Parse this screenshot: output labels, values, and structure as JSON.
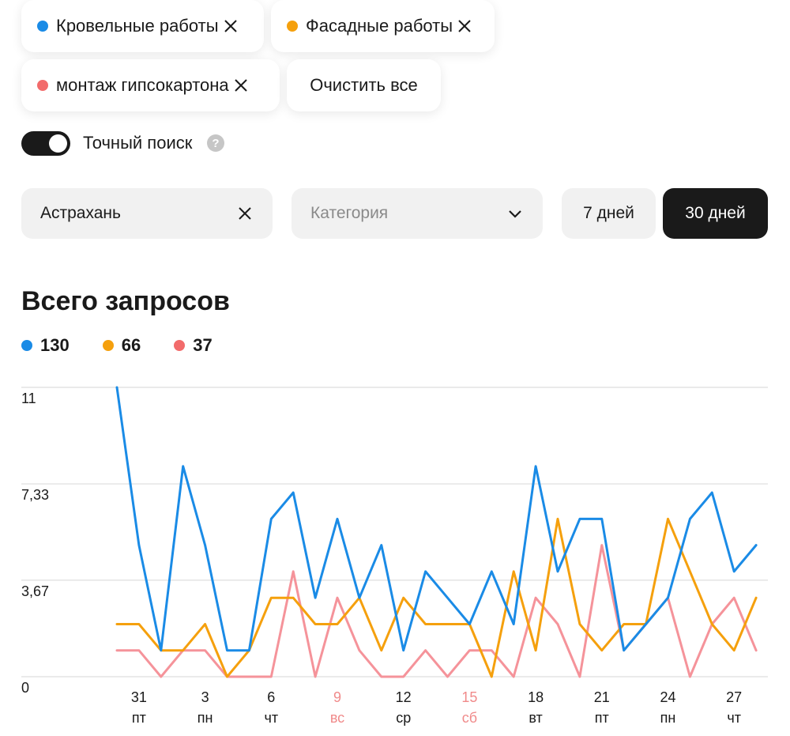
{
  "filters": {
    "chips": [
      {
        "label": "Кровельные работы",
        "color": "#1a8be6"
      },
      {
        "label": "Фасадные работы",
        "color": "#f5a00d"
      },
      {
        "label": "монтаж гипсокартона",
        "color": "#f26b6b"
      }
    ],
    "clear_all": "Очистить все"
  },
  "exact_search": {
    "label": "Точный поиск",
    "enabled": true,
    "help": "?"
  },
  "city": {
    "value": "Астрахань"
  },
  "category": {
    "placeholder": "Категория"
  },
  "period": {
    "days7": "7 дней",
    "days30": "30 дней",
    "selected": "30 дней"
  },
  "summary": {
    "title": "Всего запросов",
    "totals": [
      {
        "value": "130",
        "color": "#1a8be6"
      },
      {
        "value": "66",
        "color": "#f5a00d"
      },
      {
        "value": "37",
        "color": "#f26b6b"
      }
    ]
  },
  "chart_data": {
    "type": "line",
    "ylim": [
      0,
      11
    ],
    "y_ticks": [
      "11",
      "7,33",
      "3,67",
      "0"
    ],
    "y_tick_values": [
      11,
      7.33,
      3.67,
      0
    ],
    "x": [
      30,
      31,
      1,
      2,
      3,
      4,
      5,
      6,
      7,
      8,
      9,
      10,
      11,
      12,
      13,
      14,
      15,
      16,
      17,
      18,
      19,
      20,
      21,
      22,
      23,
      24,
      25,
      26,
      27,
      28
    ],
    "x_ticks": [
      {
        "day": "31",
        "weekday": "пт",
        "index": 1,
        "weekend": false
      },
      {
        "day": "3",
        "weekday": "пн",
        "index": 4,
        "weekend": false
      },
      {
        "day": "6",
        "weekday": "чт",
        "index": 7,
        "weekend": false
      },
      {
        "day": "9",
        "weekday": "вс",
        "index": 10,
        "weekend": true
      },
      {
        "day": "12",
        "weekday": "ср",
        "index": 13,
        "weekend": false
      },
      {
        "day": "15",
        "weekday": "сб",
        "index": 16,
        "weekend": true
      },
      {
        "day": "18",
        "weekday": "вт",
        "index": 19,
        "weekend": false
      },
      {
        "day": "21",
        "weekday": "пт",
        "index": 22,
        "weekend": false
      },
      {
        "day": "24",
        "weekday": "пн",
        "index": 25,
        "weekend": false
      },
      {
        "day": "27",
        "weekday": "чт",
        "index": 28,
        "weekend": false
      }
    ],
    "weekend_color": "#f08a8a",
    "grid": true,
    "series": [
      {
        "color": "#1a8be6",
        "values": [
          11,
          5,
          1,
          8,
          5,
          1,
          1,
          6,
          7,
          3,
          6,
          3,
          5,
          1,
          4,
          3,
          2,
          4,
          2,
          8,
          4,
          6,
          6,
          1,
          2,
          3,
          6,
          7,
          4,
          5
        ]
      },
      {
        "color": "#f5a00d",
        "values": [
          2,
          2,
          1,
          1,
          2,
          0,
          1,
          3,
          3,
          2,
          2,
          3,
          1,
          3,
          2,
          2,
          2,
          0,
          4,
          1,
          6,
          2,
          1,
          2,
          2,
          6,
          4,
          2,
          1,
          3
        ]
      },
      {
        "color": "#f5939a",
        "values": [
          1,
          1,
          0,
          1,
          1,
          0,
          0,
          0,
          4,
          0,
          3,
          1,
          0,
          0,
          1,
          0,
          1,
          1,
          0,
          3,
          2,
          0,
          5,
          1,
          2,
          3,
          0,
          2,
          3,
          1
        ]
      }
    ]
  }
}
